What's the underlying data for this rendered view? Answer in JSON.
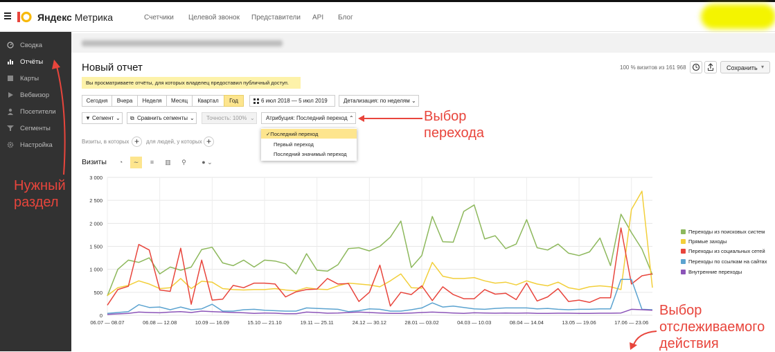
{
  "app": {
    "brand_main": "Яндекс",
    "brand_sub": "Метрика",
    "top_nav": [
      "Счетчики",
      "Целевой звонок",
      "Представители",
      "API",
      "Блог"
    ]
  },
  "sidebar": {
    "items": [
      {
        "label": "Сводка",
        "icon": "dashboard-icon"
      },
      {
        "label": "Отчёты",
        "icon": "reports-icon"
      },
      {
        "label": "Карты",
        "icon": "maps-icon"
      },
      {
        "label": "Вебвизор",
        "icon": "play-icon"
      },
      {
        "label": "Посетители",
        "icon": "person-icon"
      },
      {
        "label": "Сегменты",
        "icon": "filter-icon"
      },
      {
        "label": "Настройка",
        "icon": "gear-icon"
      }
    ]
  },
  "annotations": {
    "needed_section": "Нужный раздел",
    "transition_choice": "Выбор перехода",
    "tracked_action": "Выбор отслеживаемого действия"
  },
  "report": {
    "title": "Новый отчет",
    "visits_of": "100 % визитов из 161 968",
    "save_label": "Сохранить",
    "notice": "Вы просматриваете отчёты, для которых владелец предоставил публичный доступ.",
    "periods": [
      "Сегодня",
      "Вчера",
      "Неделя",
      "Месяц",
      "Квартал",
      "Год"
    ],
    "selected_period": "Год",
    "date_range": "6 июл 2018 — 5 июл 2019",
    "detail": "Детализация: по неделям",
    "segment": "Сегмент",
    "compare": "Сравнить сегменты",
    "accuracy": "Точность: 100%",
    "attribution": "Атрибуция: Последний переход",
    "attribution_options": [
      "Последний переход",
      "Первый переход",
      "Последний значимый переход"
    ],
    "filter_visits": "Визиты, в которых",
    "filter_people": "для людей, у которых",
    "chart_title": "Визиты"
  },
  "chart_data": {
    "type": "line",
    "ylim": [
      0,
      3000
    ],
    "yticks": [
      0,
      500,
      1000,
      1500,
      2000,
      2500,
      3000
    ],
    "ytick_labels": [
      "0",
      "500",
      "1 000",
      "1 500",
      "2 000",
      "2 500",
      "3 000"
    ],
    "xtick_labels": [
      "06.07 — 08.07",
      "06.08 — 12.08",
      "10.09 — 16.09",
      "15.10 — 21.10",
      "19.11 — 25.11",
      "24.12 — 30.12",
      "28.01 — 03.02",
      "04.03 — 10.03",
      "08.04 — 14.04",
      "13.05 — 19.06",
      "17.06 — 23.06"
    ],
    "xtick_index": [
      0,
      5,
      10,
      15,
      20,
      25,
      30,
      35,
      40,
      45,
      50
    ],
    "n_points": 53,
    "series": [
      {
        "name": "Переходы из поисковых систем",
        "color": "#8db85c",
        "values": [
          420,
          1000,
          1200,
          1150,
          1250,
          900,
          1050,
          980,
          1050,
          1430,
          1480,
          1140,
          1080,
          1200,
          1050,
          1200,
          1180,
          1120,
          900,
          1340,
          980,
          960,
          1100,
          1450,
          1470,
          1400,
          1500,
          1700,
          2050,
          1040,
          1300,
          2150,
          1600,
          1590,
          2260,
          2400,
          1660,
          1730,
          1450,
          1550,
          2080,
          1470,
          1420,
          1550,
          1350,
          1300,
          1380,
          1680,
          1080,
          2200,
          1800,
          1440,
          880
        ]
      },
      {
        "name": "Прямые заходы",
        "color": "#f2cf3a",
        "values": [
          430,
          600,
          650,
          750,
          680,
          580,
          600,
          800,
          580,
          740,
          720,
          580,
          560,
          550,
          560,
          560,
          580,
          550,
          530,
          600,
          570,
          560,
          640,
          700,
          680,
          660,
          620,
          750,
          900,
          600,
          590,
          1150,
          850,
          800,
          800,
          820,
          750,
          700,
          720,
          660,
          750,
          680,
          640,
          720,
          600,
          560,
          620,
          640,
          620,
          560,
          2300,
          2700,
          600
        ]
      },
      {
        "name": "Переходы из социальных сетей",
        "color": "#e8453c",
        "values": [
          220,
          560,
          630,
          1540,
          1420,
          550,
          520,
          1460,
          240,
          1200,
          330,
          350,
          650,
          600,
          700,
          700,
          680,
          400,
          510,
          560,
          570,
          800,
          680,
          690,
          300,
          500,
          1090,
          200,
          500,
          450,
          640,
          320,
          620,
          450,
          360,
          360,
          560,
          460,
          480,
          340,
          700,
          310,
          400,
          580,
          300,
          330,
          280,
          380,
          380,
          1900,
          680,
          860,
          900
        ]
      },
      {
        "name": "Переходы по ссылкам на сайтах",
        "color": "#5ba3d0",
        "values": [
          40,
          60,
          80,
          230,
          170,
          180,
          120,
          180,
          120,
          140,
          240,
          90,
          90,
          120,
          130,
          110,
          100,
          90,
          90,
          160,
          150,
          140,
          130,
          80,
          100,
          140,
          130,
          90,
          90,
          120,
          160,
          270,
          180,
          200,
          170,
          140,
          130,
          150,
          160,
          160,
          160,
          140,
          150,
          130,
          120,
          130,
          130,
          140,
          140,
          780,
          780,
          130,
          120
        ]
      },
      {
        "name": "Внутренние переходы",
        "color": "#8b54b8",
        "values": [
          20,
          30,
          40,
          70,
          60,
          55,
          70,
          80,
          60,
          90,
          80,
          70,
          60,
          55,
          40,
          50,
          45,
          35,
          35,
          70,
          60,
          45,
          50,
          60,
          70,
          60,
          50,
          40,
          40,
          50,
          60,
          70,
          60,
          50,
          40,
          55,
          50,
          45,
          50,
          45,
          50,
          40,
          40,
          45,
          45,
          40,
          40,
          45,
          45,
          50,
          130,
          120,
          110
        ]
      }
    ]
  }
}
